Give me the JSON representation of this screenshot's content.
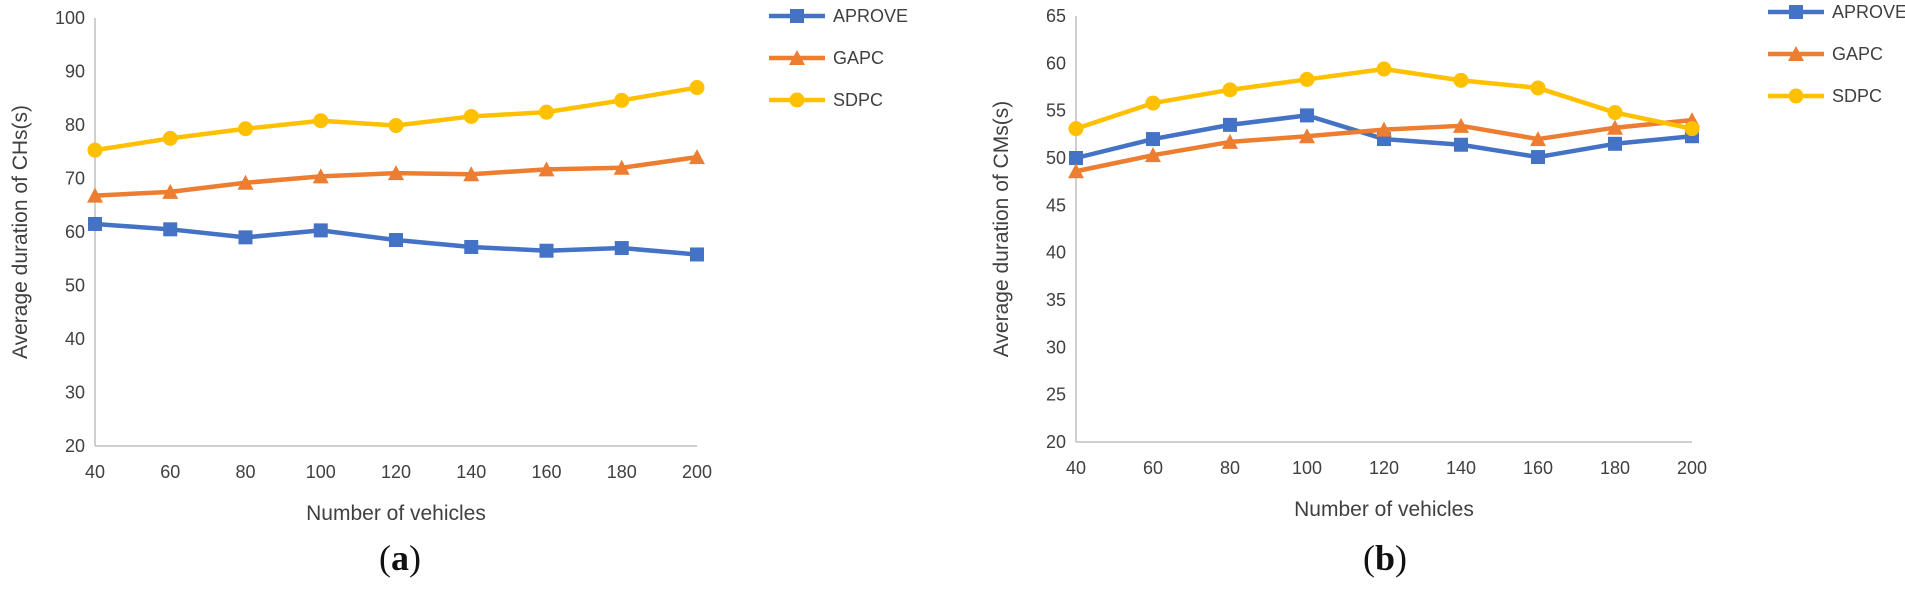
{
  "chart_data": [
    {
      "type": "line",
      "caption": "(a)",
      "xlabel": "Number of vehicles",
      "ylabel": "Average duration of CHs(s)",
      "x": [
        40,
        60,
        80,
        100,
        120,
        140,
        160,
        180,
        200
      ],
      "xlim": [
        40,
        200
      ],
      "ylim": [
        20,
        100
      ],
      "yticks": [
        20,
        30,
        40,
        50,
        60,
        70,
        80,
        90,
        100
      ],
      "grid": false,
      "legend": "top-right",
      "series": [
        {
          "name": "APROVE",
          "color": "#4472C4",
          "marker": "square",
          "values": [
            61.5,
            60.5,
            59,
            60.3,
            58.5,
            57.2,
            56.5,
            57,
            55.8
          ]
        },
        {
          "name": "GAPC",
          "color": "#ED7D31",
          "marker": "triangle",
          "values": [
            66.8,
            67.5,
            69.2,
            70.4,
            71,
            70.8,
            71.7,
            72,
            74
          ]
        },
        {
          "name": "SDPC",
          "color": "#FFC000",
          "marker": "circle",
          "values": [
            75.3,
            77.5,
            79.3,
            80.8,
            79.9,
            81.6,
            82.4,
            84.6,
            87
          ]
        }
      ]
    },
    {
      "type": "line",
      "caption": "(b)",
      "xlabel": "Number of vehicles",
      "ylabel": "Average duration of CMs(s)",
      "x": [
        40,
        60,
        80,
        100,
        120,
        140,
        160,
        180,
        200
      ],
      "xlim": [
        40,
        200
      ],
      "ylim": [
        20,
        65
      ],
      "yticks": [
        20,
        25,
        30,
        35,
        40,
        45,
        50,
        55,
        60,
        65
      ],
      "grid": false,
      "legend": "top-right",
      "series": [
        {
          "name": "APROVE",
          "color": "#4472C4",
          "marker": "square",
          "values": [
            50,
            52,
            53.5,
            54.5,
            52,
            51.4,
            50.1,
            51.5,
            52.3
          ]
        },
        {
          "name": "GAPC",
          "color": "#ED7D31",
          "marker": "triangle",
          "values": [
            48.6,
            50.3,
            51.7,
            52.3,
            53,
            53.4,
            52,
            53.2,
            54
          ]
        },
        {
          "name": "SDPC",
          "color": "#FFC000",
          "marker": "circle",
          "values": [
            53.1,
            55.8,
            57.2,
            58.3,
            59.4,
            58.2,
            57.4,
            54.8,
            53.1
          ]
        }
      ]
    }
  ]
}
